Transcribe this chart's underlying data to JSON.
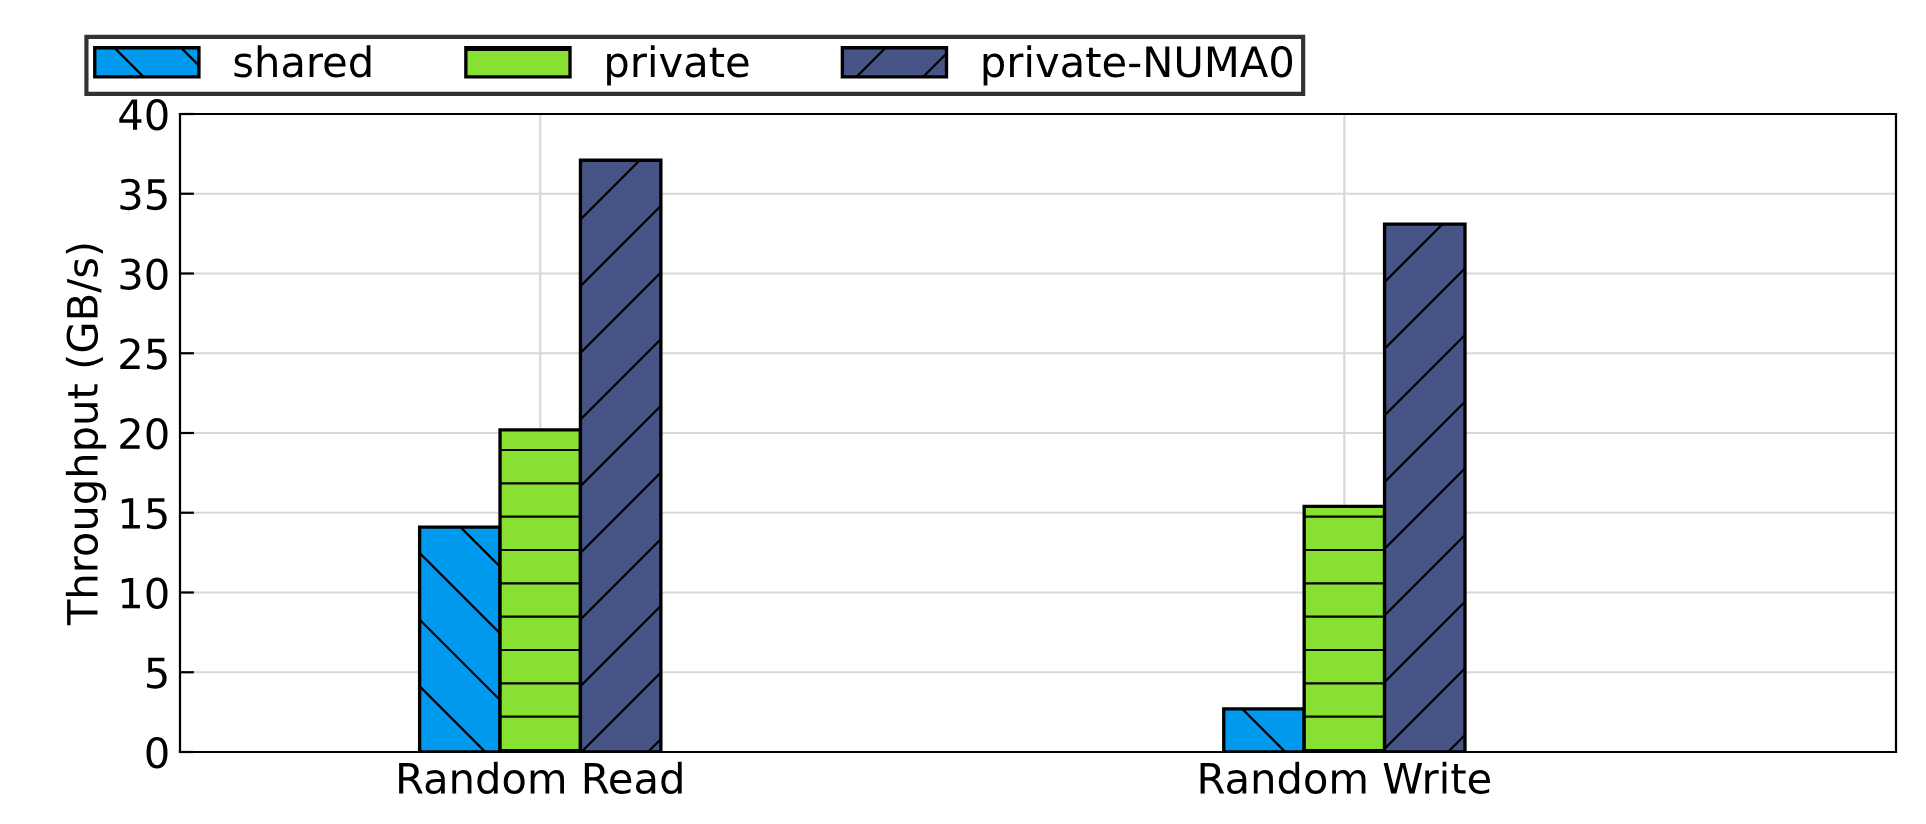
{
  "chart_data": {
    "type": "bar",
    "ylabel": "Throughput (GB/s)",
    "categories": [
      "Random Read",
      "Random Write"
    ],
    "series": [
      {
        "name": "shared",
        "color": "#0099ee",
        "values": [
          14.1,
          2.7
        ]
      },
      {
        "name": "private",
        "color": "#88e033",
        "values": [
          20.2,
          15.4
        ]
      },
      {
        "name": "private-NUMA0",
        "color": "#465486",
        "values": [
          37.1,
          33.1
        ]
      }
    ],
    "ylim": [
      0,
      40
    ],
    "yticks": [
      0,
      5,
      10,
      15,
      20,
      25,
      30,
      35,
      40
    ],
    "grid": true,
    "legend": "top"
  }
}
